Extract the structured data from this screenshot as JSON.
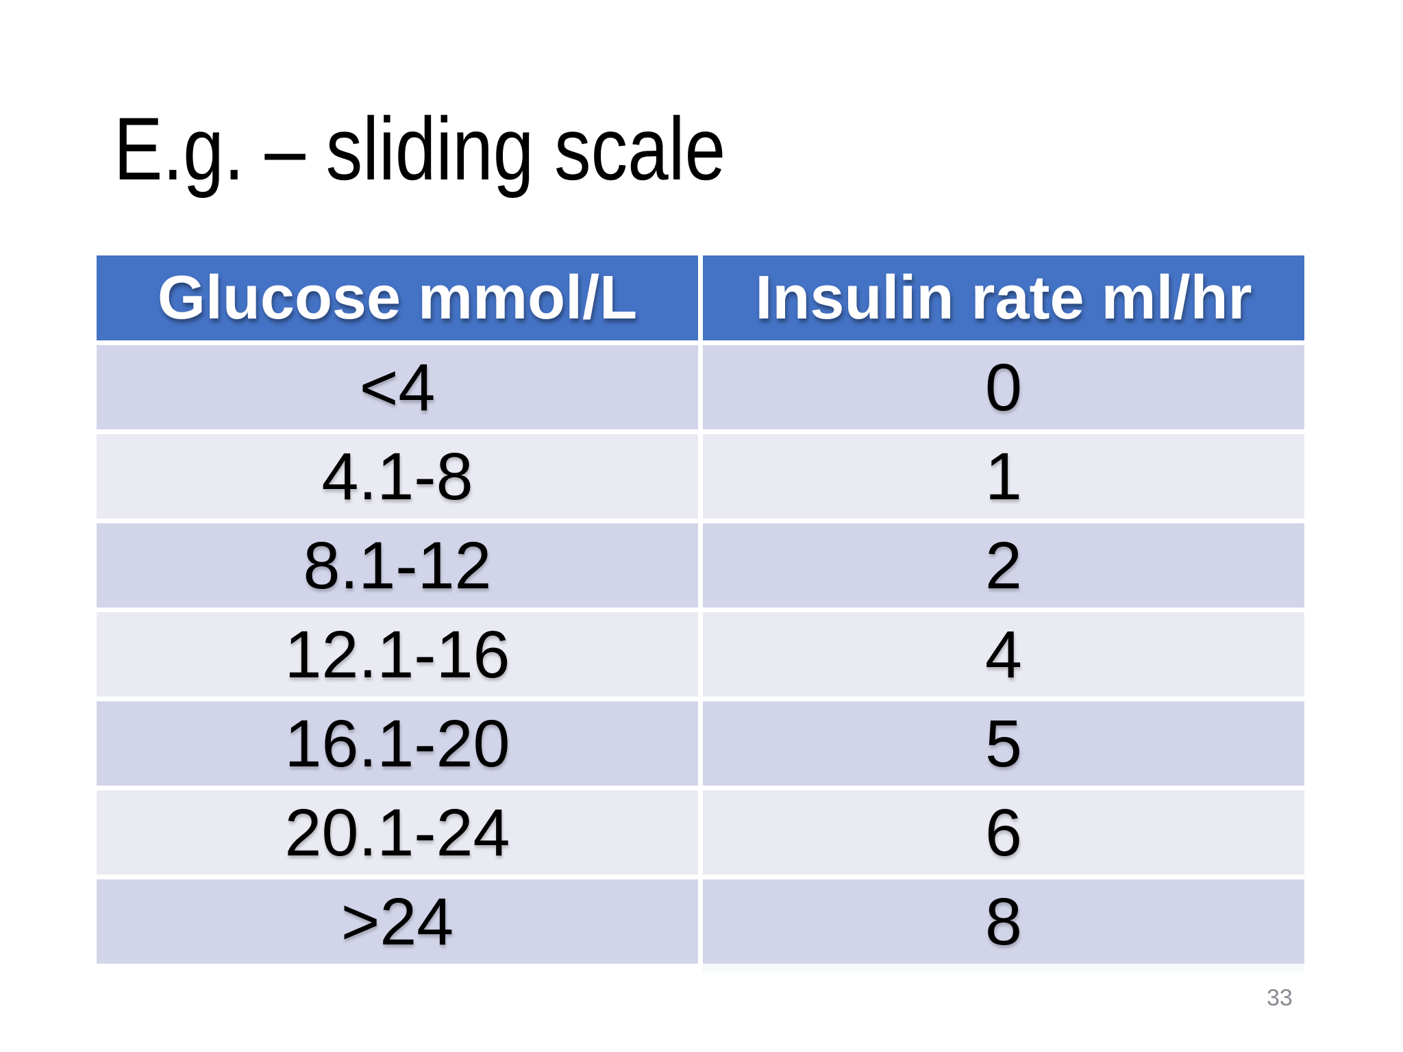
{
  "slide": {
    "title": "E.g. – sliding scale",
    "page_number": "33"
  },
  "table": {
    "columns": [
      {
        "label": "Glucose mmol/L"
      },
      {
        "label": "Insulin rate ml/hr"
      }
    ],
    "rows": [
      {
        "glucose": "<4",
        "insulin": "0"
      },
      {
        "glucose": "4.1-8",
        "insulin": "1"
      },
      {
        "glucose": "8.1-12",
        "insulin": "2"
      },
      {
        "glucose": "12.1-16",
        "insulin": "4"
      },
      {
        "glucose": "16.1-20",
        "insulin": "5"
      },
      {
        "glucose": "20.1-24",
        "insulin": "6"
      },
      {
        "glucose": ">24",
        "insulin": "8"
      }
    ]
  },
  "colors": {
    "header_bg": "#4472C4",
    "header_text": "#FFFFFF",
    "row_dark": "#D2D4E9",
    "row_light": "#E9EAF2",
    "title_text": "#000000",
    "body_text": "#000000",
    "page_number": "#8A8A92"
  }
}
